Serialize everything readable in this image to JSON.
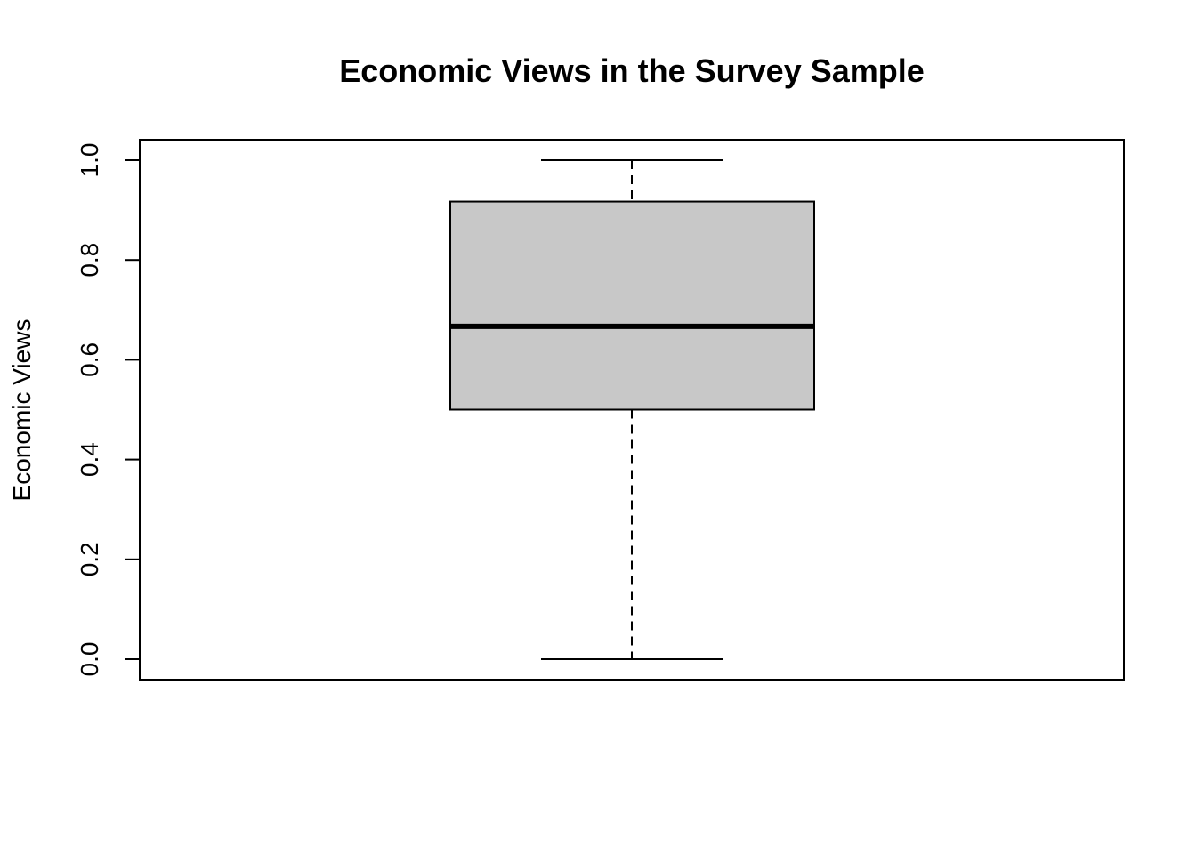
{
  "chart_data": {
    "type": "box",
    "title": "Economic Views in the Survey Sample",
    "xlabel": "",
    "ylabel": "Economic Views",
    "ylim": [
      0.0,
      1.0
    ],
    "yticks": [
      "0.0",
      "0.2",
      "0.4",
      "0.6",
      "0.8",
      "1.0"
    ],
    "grid": false,
    "series": [
      {
        "min": 0.0,
        "q1": 0.5,
        "median": 0.667,
        "q3": 0.917,
        "max": 1.0
      }
    ],
    "colors": {
      "box_fill": "#c8c8c8",
      "line": "#000000"
    }
  }
}
